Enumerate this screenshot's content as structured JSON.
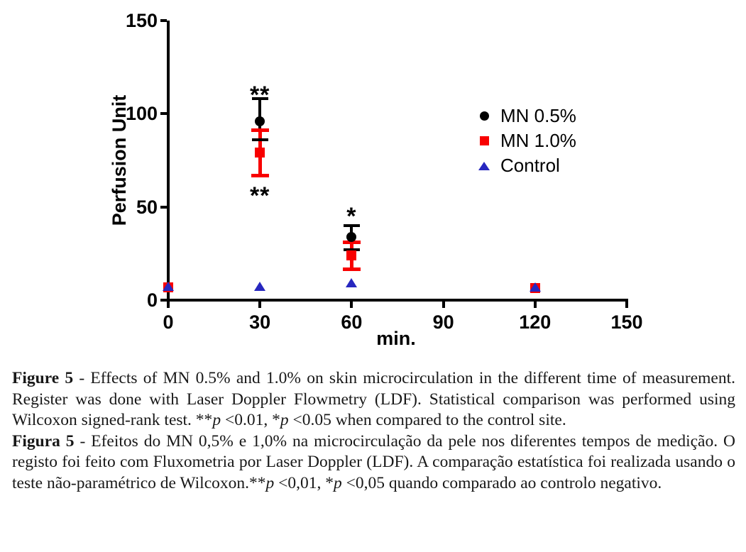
{
  "figure_title": "Figure 5",
  "chart_data": {
    "type": "scatter",
    "title": "",
    "xlabel": "min.",
    "ylabel": "Perfusion Unit",
    "xlim": [
      0,
      150
    ],
    "ylim": [
      0,
      150
    ],
    "xticks": [
      0,
      30,
      60,
      90,
      120,
      150
    ],
    "yticks": [
      0,
      50,
      100,
      150
    ],
    "grid": false,
    "legend_position": "upper right",
    "series": [
      {
        "name": "MN 0.5%",
        "marker": "circle",
        "color": "#000000",
        "points": [
          {
            "x": 0,
            "y": 7
          },
          {
            "x": 30,
            "y": 96,
            "lo": 86,
            "hi": 108
          },
          {
            "x": 60,
            "y": 34,
            "lo": 27,
            "hi": 40
          },
          {
            "x": 120,
            "y": 6.5
          }
        ]
      },
      {
        "name": "MN 1.0%",
        "marker": "square",
        "color": "#f80000",
        "points": [
          {
            "x": 0,
            "y": 7
          },
          {
            "x": 30,
            "y": 79,
            "lo": 67,
            "hi": 91
          },
          {
            "x": 60,
            "y": 24,
            "lo": 16.5,
            "hi": 31
          },
          {
            "x": 120,
            "y": 6.5
          }
        ]
      },
      {
        "name": "Control",
        "marker": "triangle",
        "color": "#2727bf",
        "points": [
          {
            "x": 0,
            "y": 7.5
          },
          {
            "x": 30,
            "y": 7.5
          },
          {
            "x": 60,
            "y": 9.5
          },
          {
            "x": 120,
            "y": 7
          }
        ]
      }
    ],
    "annotations": [
      {
        "text": "**",
        "x": 30,
        "y": 113
      },
      {
        "text": "**",
        "x": 30,
        "y": 59
      },
      {
        "text": "*",
        "x": 60,
        "y": 48
      }
    ]
  },
  "caption_en": {
    "segments": [
      {
        "t": "Figure 5",
        "b": true
      },
      {
        "t": " - Effects of MN 0.5% and 1.0% on skin microcirculation in the different time of measurement. Register was done with Laser Doppler Flowmetry (LDF). Statistical comparison was performed using Wilcoxon signed-rank test. **"
      },
      {
        "t": "p",
        "i": true
      },
      {
        "t": " <0.01, *"
      },
      {
        "t": "p",
        "i": true
      },
      {
        "t": " <0.05 when compared to the control site."
      }
    ]
  },
  "caption_pt": {
    "segments": [
      {
        "t": "Figura 5",
        "b": true
      },
      {
        "t": " - Efeitos do MN 0,5% e 1,0% na microcirculação da pele nos diferentes tempos de medição. O registo foi feito com Fluxometria por Laser Doppler (LDF). A comparação estatística foi realizada usando o teste não-paramétrico de Wilcoxon.**"
      },
      {
        "t": "p",
        "i": true
      },
      {
        "t": " <0,01, *"
      },
      {
        "t": "p",
        "i": true
      },
      {
        "t": " <0,05 quando comparado ao controlo negativo."
      }
    ]
  }
}
